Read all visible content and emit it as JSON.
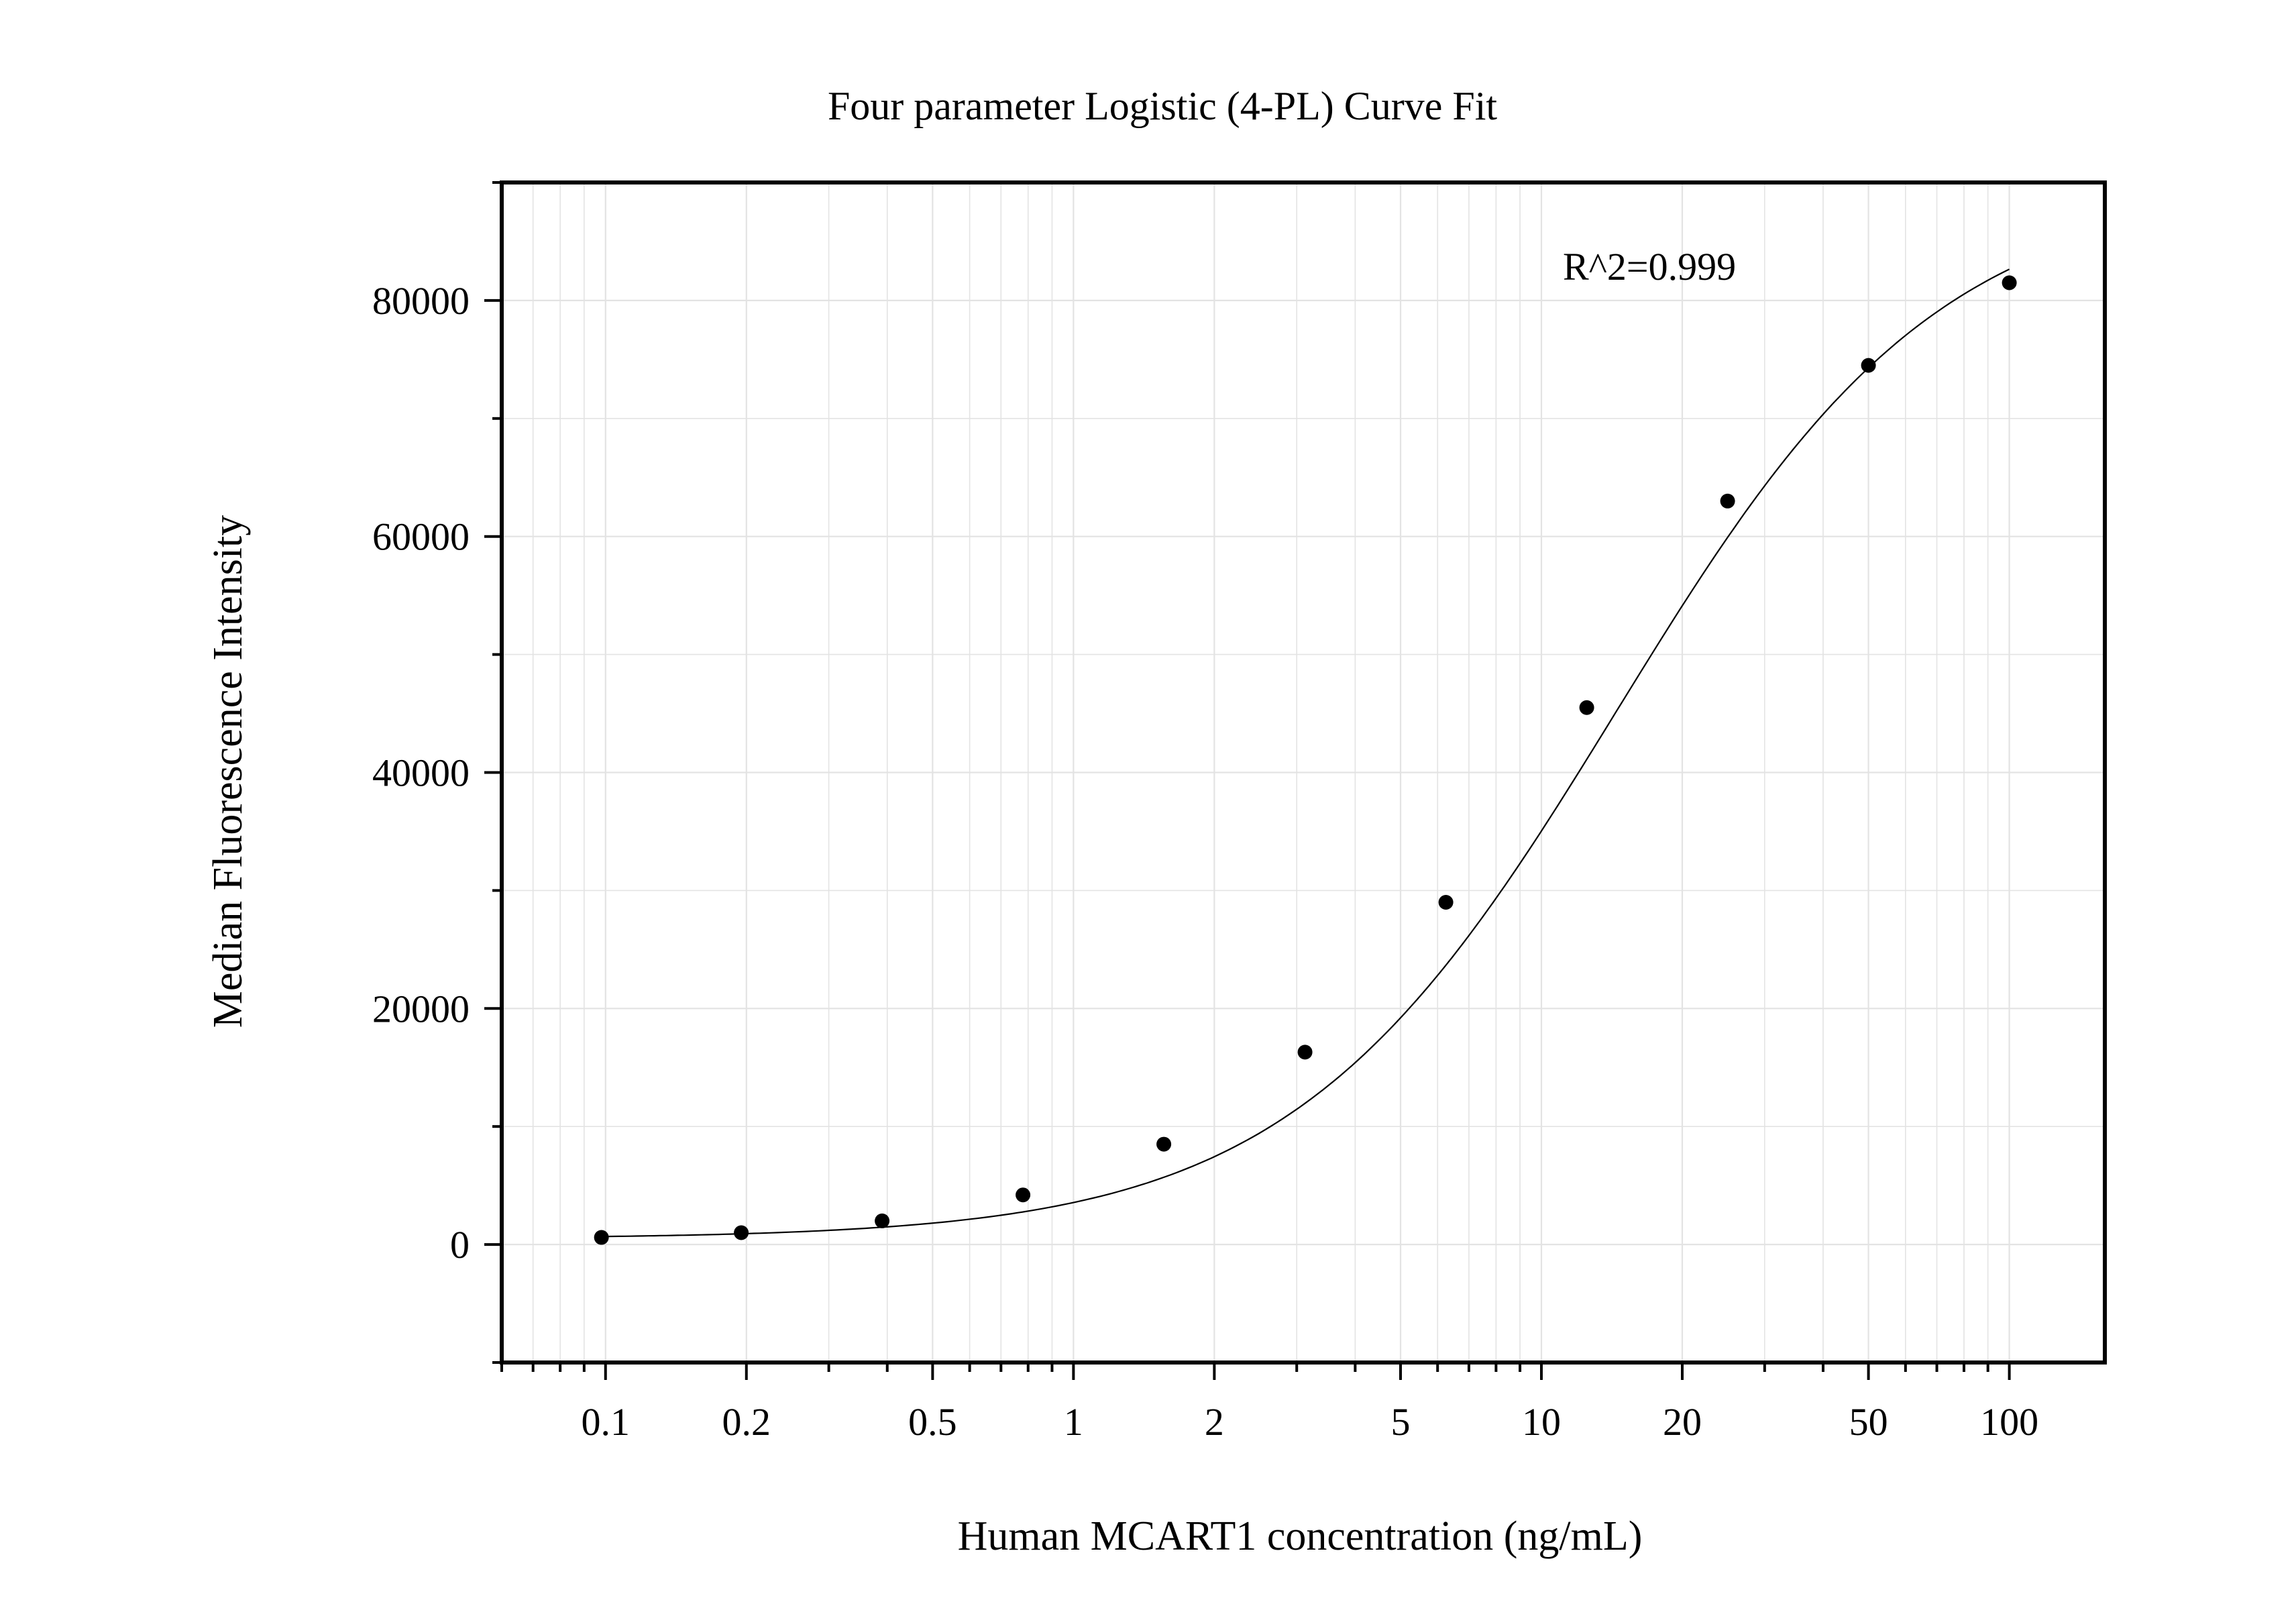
{
  "chart_data": {
    "type": "scatter",
    "title": "Four parameter Logistic (4-PL) Curve Fit",
    "xlabel": "Human MCART1 concentration (ng/mL)",
    "ylabel": "Median Fluorescence Intensity",
    "x_scale": "log",
    "xlim": [
      0.06,
      160
    ],
    "ylim": [
      -10000,
      90000
    ],
    "x_ticks": [
      {
        "value": 0.1,
        "label": "0.1"
      },
      {
        "value": 0.2,
        "label": "0.2"
      },
      {
        "value": 0.5,
        "label": "0.5"
      },
      {
        "value": 1,
        "label": "1"
      },
      {
        "value": 2,
        "label": "2"
      },
      {
        "value": 5,
        "label": "5"
      },
      {
        "value": 10,
        "label": "10"
      },
      {
        "value": 20,
        "label": "20"
      },
      {
        "value": 50,
        "label": "50"
      },
      {
        "value": 100,
        "label": "100"
      }
    ],
    "y_ticks": [
      {
        "value": 0,
        "label": "0"
      },
      {
        "value": 20000,
        "label": "20000"
      },
      {
        "value": 40000,
        "label": "40000"
      },
      {
        "value": 60000,
        "label": "60000"
      },
      {
        "value": 80000,
        "label": "80000"
      }
    ],
    "grid": true,
    "points": {
      "x": [
        0.098,
        0.195,
        0.39,
        0.78,
        1.56,
        3.125,
        6.25,
        12.5,
        25,
        50,
        100
      ],
      "y": [
        600,
        1000,
        2000,
        4200,
        8500,
        16300,
        29000,
        45500,
        63000,
        74500,
        81500
      ]
    },
    "fit": {
      "model": "4-PL",
      "bottom": 500,
      "top": 90000,
      "ec50": 14.5,
      "hill": 1.25
    },
    "annotations": [
      {
        "text": "R^2=0.999"
      }
    ],
    "colors": {
      "points": "#000000",
      "curve": "#000000",
      "grid": "#e3e3e3",
      "axis": "#000000"
    }
  }
}
